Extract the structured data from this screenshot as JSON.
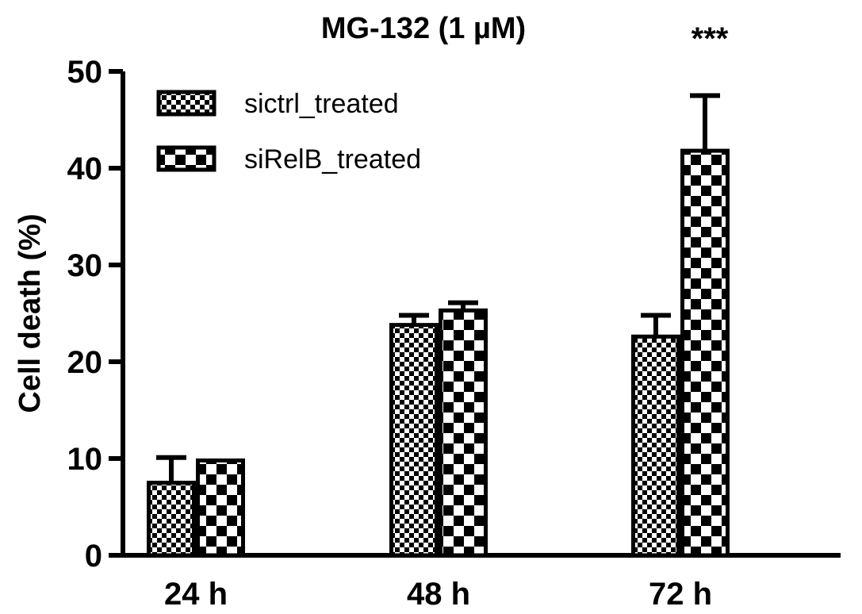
{
  "chart_data": {
    "type": "bar",
    "title": "MG-132 (1 µM)",
    "xlabel": "",
    "ylabel": "Cell death (%)",
    "ylim": [
      0,
      50
    ],
    "yticks": [
      "0",
      "10",
      "20",
      "30",
      "40",
      "50"
    ],
    "categories": [
      "24 h",
      "48 h",
      "72 h"
    ],
    "series": [
      {
        "name": "sictrl_treated",
        "values": [
          7.5,
          23.8,
          22.6
        ],
        "errors": [
          2.6,
          1.0,
          2.2
        ],
        "pattern": "fine-checker"
      },
      {
        "name": "siRelB_treated",
        "values": [
          9.8,
          25.3,
          41.8
        ],
        "errors": [
          0.0,
          0.8,
          5.7
        ],
        "pattern": "coarse-checker"
      }
    ],
    "annotations": [
      {
        "text": "***",
        "category": "72 h"
      }
    ],
    "legend_position": "top-left",
    "grid": false,
    "colors": {
      "ink": "#000000",
      "fill": "#ffffff"
    }
  }
}
